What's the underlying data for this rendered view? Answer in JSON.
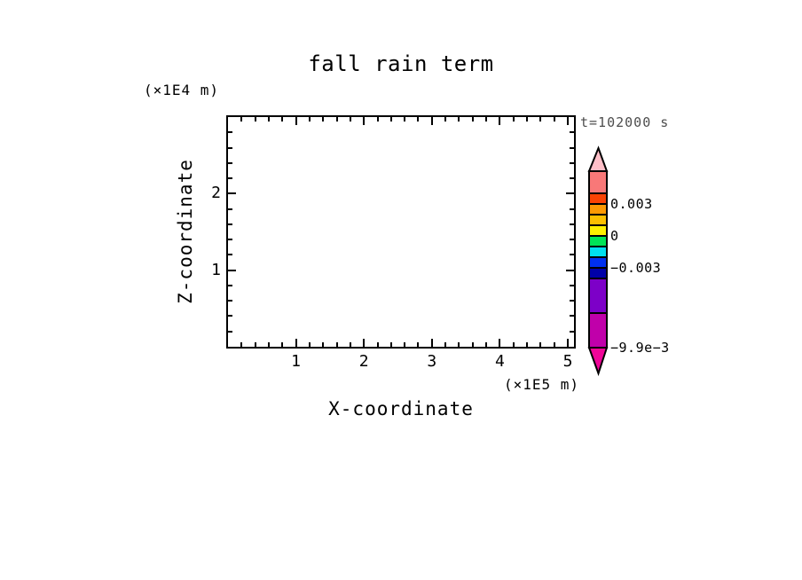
{
  "page": {
    "background_color": "#FFFFFF",
    "foreground_color": "#000000"
  },
  "chart_data": {
    "type": "heatmap",
    "title": "fall rain term",
    "annotation": "t=102000 s",
    "annotation_color": "#4D4D4D",
    "xlabel": "X-coordinate",
    "x_unit_label": "(×1E5 m)",
    "ylabel": "Z-coordinate",
    "y_unit_label": "(×1E4 m)",
    "xlim": [
      0,
      5.1
    ],
    "ylim": [
      0,
      3.0
    ],
    "x_major_ticks": [
      1,
      2,
      3,
      4,
      5
    ],
    "y_major_ticks": [
      1,
      2
    ],
    "minor_tick_step": 0.2,
    "grid": false,
    "plot_area_empty": true,
    "axis_color": "#000000",
    "colorbar": {
      "orientation": "vertical",
      "position": "right",
      "top_arrow_color": "#FFBFC8",
      "bottom_arrow_color": "#EF0598",
      "segments": [
        {
          "color": "#F87878",
          "span": 25
        },
        {
          "color": "#FB4304",
          "span": 12
        },
        {
          "color": "#FD9903",
          "span": 12
        },
        {
          "color": "#FCBF00",
          "span": 12
        },
        {
          "color": "#FEF000",
          "span": 12
        },
        {
          "color": "#00E457",
          "span": 12
        },
        {
          "color": "#00DFEF",
          "span": 12
        },
        {
          "color": "#0030F0",
          "span": 12
        },
        {
          "color": "#0000A8",
          "span": 12
        },
        {
          "color": "#7D00C8",
          "span": 39
        },
        {
          "color": "#C000AA",
          "span": 39
        }
      ],
      "labels": [
        {
          "text": "0.003",
          "value": 0.003,
          "after_segment": 1
        },
        {
          "text": "0",
          "value": 0,
          "after_segment": 4
        },
        {
          "text": "−0.003",
          "value": -0.003,
          "after_segment": 7
        },
        {
          "text": "−9.9e−3",
          "value": -0.0099,
          "after_segment": 10
        }
      ]
    }
  }
}
